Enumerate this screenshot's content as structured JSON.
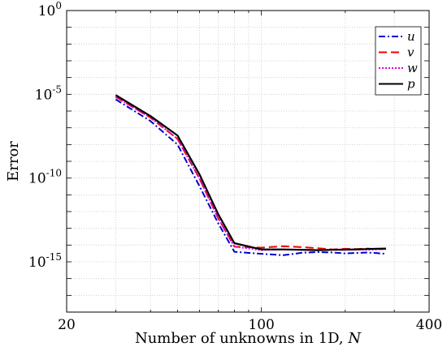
{
  "chart_data": {
    "type": "line",
    "xlabel": "Number of unknowns in 1D, ",
    "xlabel_var": "N",
    "ylabel": "Error",
    "x_scale": "log",
    "y_scale": "log",
    "xlim": [
      20,
      400
    ],
    "ylim": [
      1e-18,
      1
    ],
    "x_ticks": [
      {
        "value": 20,
        "label": "20"
      },
      {
        "value": 100,
        "label": "100"
      },
      {
        "value": 400,
        "label": "400"
      }
    ],
    "y_ticks": [
      {
        "value": 1,
        "base": "10",
        "exp": "0"
      },
      {
        "value": 1e-05,
        "base": "10",
        "exp": "-5"
      },
      {
        "value": 1e-10,
        "base": "10",
        "exp": "-10"
      },
      {
        "value": 1e-15,
        "base": "10",
        "exp": "-15"
      }
    ],
    "grid": true,
    "legend_position": "top-right",
    "series": [
      {
        "name": "u",
        "color": "#0000cc",
        "dash": "8,3,2,3",
        "x": [
          30,
          40,
          50,
          60,
          70,
          80,
          100,
          120,
          140,
          160,
          180,
          200,
          220,
          240,
          260,
          280
        ],
        "y": [
          5e-06,
          2.5e-07,
          1e-08,
          3.2e-11,
          2e-13,
          4e-15,
          3e-15,
          2.5e-15,
          3.5e-15,
          3.8e-15,
          3.6e-15,
          3.2e-15,
          3.4e-15,
          3.6e-15,
          3.3e-15,
          3e-15
        ]
      },
      {
        "name": "v",
        "color": "#ee0000",
        "dash": "10,5",
        "x": [
          30,
          40,
          50,
          60,
          70,
          80,
          100,
          120,
          140,
          160,
          180,
          200,
          220,
          240,
          260,
          280
        ],
        "y": [
          7e-06,
          4e-07,
          2.2e-08,
          9e-11,
          4e-13,
          8e-15,
          7e-15,
          8.5e-15,
          7.5e-15,
          6.5e-15,
          5.5e-15,
          6e-15,
          5.8e-15,
          6.2e-15,
          5.7e-15,
          6e-15
        ]
      },
      {
        "name": "w",
        "color": "#dd00dd",
        "dash": "2,2",
        "x": [
          30,
          40,
          50,
          60,
          70,
          80,
          100,
          120,
          140,
          160,
          180,
          200,
          220,
          240,
          260,
          280
        ],
        "y": [
          7e-06,
          4e-07,
          2.2e-08,
          9e-11,
          4e-13,
          8e-15,
          5e-15,
          5.5e-15,
          5.2e-15,
          5e-15,
          5.3e-15,
          5.6e-15,
          5.4e-15,
          5.2e-15,
          5.5e-15,
          5.8e-15
        ]
      },
      {
        "name": "p",
        "color": "#000000",
        "dash": "",
        "x": [
          30,
          40,
          50,
          60,
          70,
          80,
          100,
          120,
          140,
          160,
          180,
          200,
          220,
          240,
          260,
          280
        ],
        "y": [
          9e-06,
          5e-07,
          3.5e-08,
          1.6e-10,
          7e-13,
          1.3e-14,
          5.5e-15,
          5.5e-15,
          5.2e-15,
          5e-15,
          5.2e-15,
          5.3e-15,
          5.5e-15,
          5.8e-15,
          6e-15,
          6.2e-15
        ]
      }
    ]
  }
}
